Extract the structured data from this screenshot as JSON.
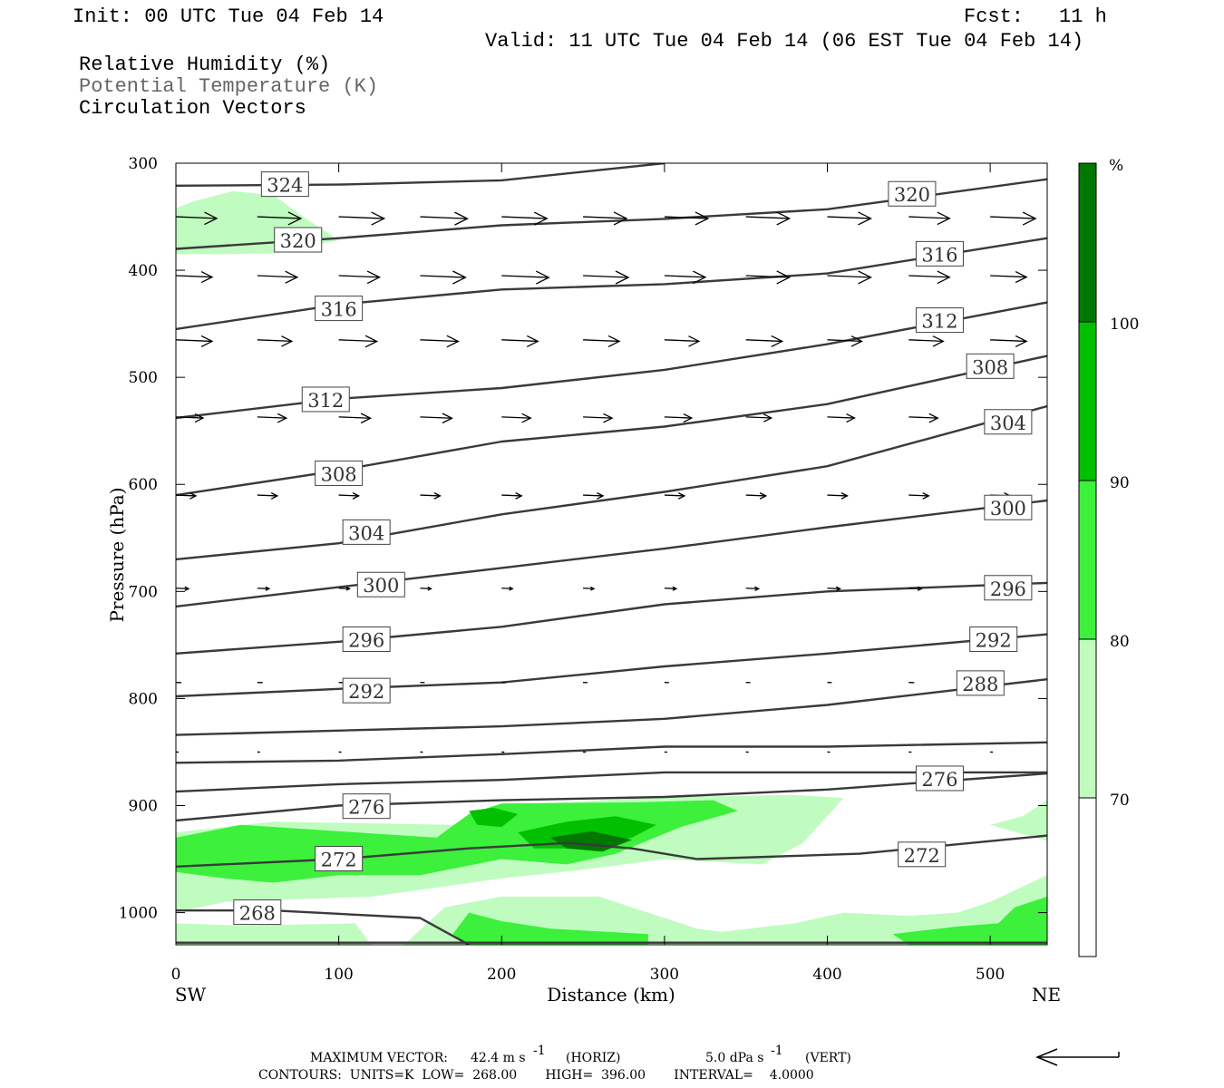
{
  "header": {
    "init": "Init: 00 UTC Tue 04 Feb 14",
    "fcst_label": "Fcst:",
    "fcst_value": "11 h",
    "valid": "Valid: 11 UTC Tue 04 Feb 14 (06 EST Tue 04 Feb 14)",
    "fields": [
      "Relative Humidity (%)",
      "Potential Temperature (K)",
      "Circulation Vectors"
    ]
  },
  "footer": {
    "max_vector_label": "MAXIMUM VECTOR:",
    "max_vector_horiz": "42.4 m s",
    "horiz_tag": "(HORIZ)",
    "max_vector_vert": "5.0 dPa s",
    "vert_tag": "(VERT)",
    "exp": "-1",
    "contours_line": "CONTOURS:  UNITS=K  LOW=  268.00       HIGH=  396.00       INTERVAL=    4.0000"
  },
  "colors": {
    "rh70": "#c0fcc0",
    "rh80": "#3cf03c",
    "rh90": "#00c000",
    "rh100": "#007800",
    "contour": "#3a3a3a"
  },
  "chart_data": {
    "type": "cross-section",
    "xlabel": "Distance (km)",
    "ylabel": "Pressure (hPa)",
    "xlim": [
      0,
      535
    ],
    "ylim": [
      1030,
      300
    ],
    "x_ticks": [
      0,
      100,
      200,
      300,
      400,
      500
    ],
    "y_ticks": [
      300,
      400,
      500,
      600,
      700,
      800,
      900,
      1000
    ],
    "x_end_labels": {
      "left": "SW",
      "right": "NE"
    },
    "colorbar": {
      "unit": "%",
      "levels": [
        70,
        80,
        90,
        100
      ],
      "colors": [
        "#ffffff",
        "#c0fcc0",
        "#3cf03c",
        "#00c000",
        "#007800"
      ]
    },
    "theta_contours": [
      {
        "level": 324,
        "points": [
          [
            0,
            321
          ],
          [
            100,
            320
          ],
          [
            200,
            316
          ],
          [
            300,
            300
          ]
        ]
      },
      {
        "level": 320,
        "points": [
          [
            0,
            380
          ],
          [
            100,
            370
          ],
          [
            200,
            358
          ],
          [
            300,
            352
          ],
          [
            400,
            343
          ],
          [
            535,
            315
          ]
        ]
      },
      {
        "level": 316,
        "points": [
          [
            0,
            455
          ],
          [
            100,
            432
          ],
          [
            200,
            418
          ],
          [
            300,
            413
          ],
          [
            400,
            403
          ],
          [
            535,
            370
          ]
        ]
      },
      {
        "level": 312,
        "points": [
          [
            0,
            538
          ],
          [
            100,
            520
          ],
          [
            200,
            510
          ],
          [
            300,
            493
          ],
          [
            400,
            469
          ],
          [
            535,
            430
          ]
        ]
      },
      {
        "level": 308,
        "points": [
          [
            0,
            610
          ],
          [
            100,
            587
          ],
          [
            200,
            560
          ],
          [
            300,
            546
          ],
          [
            400,
            525
          ],
          [
            535,
            480
          ]
        ]
      },
      {
        "level": 304,
        "points": [
          [
            0,
            670
          ],
          [
            100,
            655
          ],
          [
            200,
            628
          ],
          [
            300,
            607
          ],
          [
            400,
            583
          ],
          [
            535,
            527
          ]
        ]
      },
      {
        "level": 300,
        "points": [
          [
            0,
            714
          ],
          [
            100,
            696
          ],
          [
            200,
            678
          ],
          [
            300,
            660
          ],
          [
            400,
            640
          ],
          [
            535,
            615
          ]
        ]
      },
      {
        "level": 296,
        "points": [
          [
            0,
            758
          ],
          [
            100,
            747
          ],
          [
            200,
            733
          ],
          [
            300,
            712
          ],
          [
            400,
            700
          ],
          [
            535,
            692
          ]
        ]
      },
      {
        "level": 292,
        "points": [
          [
            0,
            798
          ],
          [
            100,
            791
          ],
          [
            200,
            785
          ],
          [
            300,
            770
          ],
          [
            400,
            758
          ],
          [
            535,
            740
          ]
        ]
      },
      {
        "level": 288,
        "points": [
          [
            0,
            834
          ],
          [
            100,
            830
          ],
          [
            200,
            826
          ],
          [
            300,
            819
          ],
          [
            400,
            806
          ],
          [
            535,
            782
          ]
        ]
      },
      {
        "level": 284,
        "points": [
          [
            0,
            860
          ],
          [
            100,
            858
          ],
          [
            200,
            852
          ],
          [
            300,
            845
          ],
          [
            400,
            845
          ],
          [
            535,
            841
          ]
        ]
      },
      {
        "level": 280,
        "points": [
          [
            0,
            887
          ],
          [
            100,
            880
          ],
          [
            200,
            876
          ],
          [
            300,
            869
          ],
          [
            400,
            869
          ],
          [
            535,
            869
          ]
        ]
      },
      {
        "level": 276,
        "points": [
          [
            0,
            914
          ],
          [
            100,
            900
          ],
          [
            200,
            895
          ],
          [
            300,
            892
          ],
          [
            400,
            885
          ],
          [
            535,
            870
          ]
        ]
      },
      {
        "level": 272,
        "points": [
          [
            0,
            957
          ],
          [
            100,
            950
          ],
          [
            180,
            940
          ],
          [
            240,
            935
          ],
          [
            280,
            940
          ],
          [
            320,
            950
          ],
          [
            420,
            945
          ],
          [
            535,
            928
          ]
        ]
      },
      {
        "level": 268,
        "points": [
          [
            0,
            998
          ],
          [
            60,
            998
          ],
          [
            150,
            1005
          ],
          [
            180,
            1030
          ]
        ]
      }
    ],
    "contour_labels": [
      {
        "text": "324",
        "x": 67,
        "p": 320
      },
      {
        "text": "320",
        "x": 75,
        "p": 372
      },
      {
        "text": "320",
        "x": 452,
        "p": 329
      },
      {
        "text": "316",
        "x": 100,
        "p": 436
      },
      {
        "text": "316",
        "x": 469,
        "p": 385
      },
      {
        "text": "312",
        "x": 92,
        "p": 521
      },
      {
        "text": "312",
        "x": 469,
        "p": 447
      },
      {
        "text": "308",
        "x": 100,
        "p": 590
      },
      {
        "text": "308",
        "x": 500,
        "p": 490
      },
      {
        "text": "304",
        "x": 117,
        "p": 645
      },
      {
        "text": "304",
        "x": 511,
        "p": 542
      },
      {
        "text": "300",
        "x": 126,
        "p": 694
      },
      {
        "text": "300",
        "x": 511,
        "p": 622
      },
      {
        "text": "296",
        "x": 117,
        "p": 745
      },
      {
        "text": "296",
        "x": 511,
        "p": 697
      },
      {
        "text": "292",
        "x": 117,
        "p": 793
      },
      {
        "text": "292",
        "x": 502,
        "p": 745
      },
      {
        "text": "288",
        "x": 494,
        "p": 786
      },
      {
        "text": "276",
        "x": 117,
        "p": 901
      },
      {
        "text": "276",
        "x": 469,
        "p": 875
      },
      {
        "text": "272",
        "x": 100,
        "p": 950
      },
      {
        "text": "272",
        "x": 458,
        "p": 946
      },
      {
        "text": "268",
        "x": 50,
        "p": 1000
      }
    ],
    "vector_rows": [
      {
        "p": 350,
        "x": [
          0,
          50,
          100,
          150,
          200,
          250,
          300,
          350,
          400,
          450,
          500
        ],
        "len": [
          45,
          48,
          50,
          52,
          50,
          48,
          48,
          48,
          48,
          45,
          50
        ]
      },
      {
        "p": 405,
        "x": [
          0,
          50,
          100,
          150,
          200,
          250,
          300,
          350,
          400,
          450,
          500
        ],
        "len": [
          40,
          44,
          45,
          50,
          52,
          50,
          45,
          48,
          48,
          45,
          40
        ]
      },
      {
        "p": 465,
        "x": [
          0,
          50,
          100,
          150,
          200,
          250,
          300,
          350,
          400,
          450,
          500
        ],
        "len": [
          40,
          38,
          42,
          42,
          40,
          40,
          38,
          40,
          38,
          38,
          40
        ]
      },
      {
        "p": 537,
        "x": [
          0,
          50,
          100,
          150,
          200,
          250,
          300,
          350,
          400,
          450,
          500
        ],
        "len": [
          30,
          32,
          35,
          35,
          32,
          32,
          30,
          28,
          30,
          32,
          30
        ]
      },
      {
        "p": 610,
        "x": [
          0,
          50,
          100,
          150,
          200,
          250,
          300,
          350,
          400,
          450,
          500
        ],
        "len": [
          22,
          22,
          22,
          22,
          22,
          22,
          22,
          22,
          22,
          22,
          22
        ]
      },
      {
        "p": 697,
        "x": [
          0,
          50,
          100,
          150,
          200,
          250,
          300,
          350,
          400,
          450,
          500
        ],
        "len": [
          14,
          13,
          12,
          12,
          12,
          12,
          13,
          14,
          14,
          14,
          14
        ]
      },
      {
        "p": 785,
        "x": [
          0,
          50,
          100,
          150,
          200,
          250,
          300,
          350,
          400,
          450,
          500
        ],
        "len": [
          6,
          6,
          6,
          5,
          5,
          5,
          5,
          5,
          5,
          6,
          6
        ]
      },
      {
        "p": 850,
        "x": [
          0,
          50,
          100,
          150,
          200,
          250,
          300,
          350,
          400,
          450,
          500
        ],
        "len": [
          3,
          3,
          3,
          3,
          3,
          3,
          3,
          3,
          3,
          3,
          3
        ]
      }
    ],
    "rh_regions": [
      {
        "level": 70,
        "points": [
          [
            0,
            342
          ],
          [
            10,
            336
          ],
          [
            35,
            326
          ],
          [
            60,
            330
          ],
          [
            80,
            352
          ],
          [
            100,
            372
          ],
          [
            60,
            384
          ],
          [
            30,
            385
          ],
          [
            0,
            385
          ]
        ]
      },
      {
        "level": 70,
        "points": [
          [
            0,
            925
          ],
          [
            60,
            915
          ],
          [
            170,
            918
          ],
          [
            200,
            900
          ],
          [
            300,
            892
          ],
          [
            380,
            890
          ],
          [
            410,
            893
          ],
          [
            385,
            935
          ],
          [
            360,
            955
          ],
          [
            300,
            950
          ],
          [
            250,
            960
          ],
          [
            200,
            968
          ],
          [
            120,
            985
          ],
          [
            30,
            990
          ],
          [
            0,
            1000
          ],
          [
            0,
            1030
          ],
          [
            535,
            1030
          ],
          [
            535,
            965
          ],
          [
            500,
            990
          ],
          [
            480,
            1000
          ],
          [
            450,
            1003
          ],
          [
            410,
            1000
          ],
          [
            380,
            1010
          ],
          [
            335,
            1018
          ],
          [
            320,
            1015
          ],
          [
            290,
            1000
          ],
          [
            260,
            985
          ],
          [
            200,
            985
          ],
          [
            165,
            995
          ],
          [
            140,
            1030
          ],
          [
            120,
            1030
          ],
          [
            110,
            1010
          ],
          [
            40,
            1012
          ],
          [
            0,
            1010
          ]
        ]
      },
      {
        "level": 70,
        "points": [
          [
            500,
            918
          ],
          [
            520,
            910
          ],
          [
            535,
            895
          ],
          [
            535,
            933
          ]
        ]
      },
      {
        "level": 80,
        "points": [
          [
            0,
            930
          ],
          [
            40,
            918
          ],
          [
            120,
            926
          ],
          [
            160,
            930
          ],
          [
            180,
            908
          ],
          [
            200,
            898
          ],
          [
            280,
            897
          ],
          [
            330,
            895
          ],
          [
            345,
            905
          ],
          [
            310,
            920
          ],
          [
            270,
            945
          ],
          [
            240,
            955
          ],
          [
            200,
            950
          ],
          [
            150,
            965
          ],
          [
            100,
            965
          ],
          [
            60,
            972
          ],
          [
            30,
            968
          ],
          [
            0,
            962
          ]
        ]
      },
      {
        "level": 80,
        "points": [
          [
            440,
            1020
          ],
          [
            480,
            1013
          ],
          [
            505,
            1010
          ],
          [
            515,
            995
          ],
          [
            535,
            985
          ],
          [
            535,
            1030
          ],
          [
            450,
            1030
          ]
        ]
      },
      {
        "level": 80,
        "points": [
          [
            170,
            1020
          ],
          [
            180,
            1000
          ],
          [
            200,
            1008
          ],
          [
            230,
            1015
          ],
          [
            290,
            1020
          ],
          [
            290,
            1030
          ],
          [
            180,
            1030
          ]
        ]
      },
      {
        "level": 90,
        "points": [
          [
            180,
            905
          ],
          [
            195,
            902
          ],
          [
            210,
            908
          ],
          [
            200,
            920
          ],
          [
            185,
            918
          ]
        ]
      },
      {
        "level": 90,
        "points": [
          [
            210,
            925
          ],
          [
            240,
            915
          ],
          [
            270,
            910
          ],
          [
            295,
            918
          ],
          [
            280,
            930
          ],
          [
            250,
            940
          ],
          [
            220,
            940
          ]
        ]
      },
      {
        "level": 100,
        "points": [
          [
            230,
            930
          ],
          [
            255,
            924
          ],
          [
            280,
            932
          ],
          [
            262,
            943
          ],
          [
            240,
            940
          ]
        ]
      }
    ]
  }
}
